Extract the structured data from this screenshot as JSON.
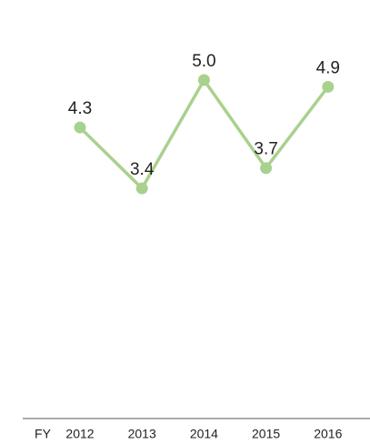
{
  "chart_data": {
    "type": "line",
    "xlabel": "FY",
    "categories": [
      "2012",
      "2013",
      "2014",
      "2015",
      "2016"
    ],
    "values": [
      4.3,
      3.4,
      5.0,
      3.7,
      4.9
    ],
    "value_labels": [
      "4.3",
      "3.4",
      "5.0",
      "3.7",
      "4.9"
    ],
    "color": "#a9d18e",
    "ylim": [
      0,
      6
    ]
  }
}
